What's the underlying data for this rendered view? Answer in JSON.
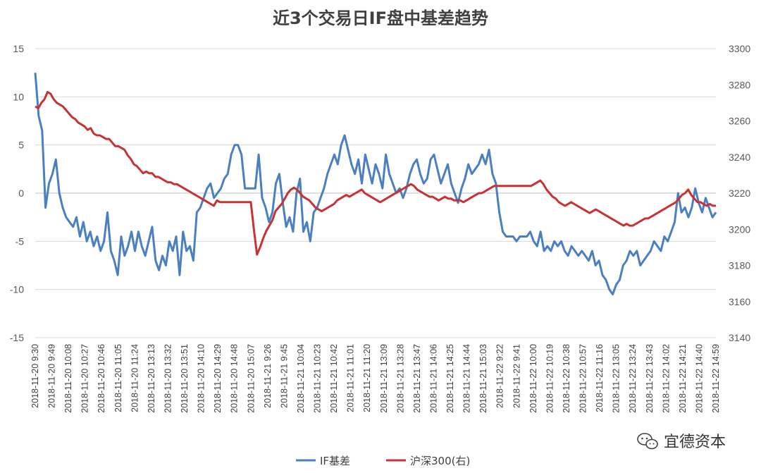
{
  "chart_data": {
    "type": "line",
    "title": "近3个交易日IF盘中基差趋势",
    "x_tick_labels": [
      "2018-11-20 9:30",
      "2018-11-20 9:49",
      "2018-11-20 10:08",
      "2018-11-20 10:27",
      "2018-11-20 10:46",
      "2018-11-20 11:05",
      "2018-11-20 11:24",
      "2018-11-20 13:13",
      "2018-11-20 13:32",
      "2018-11-20 13:51",
      "2018-11-20 14:10",
      "2018-11-20 14:29",
      "2018-11-20 14:48",
      "2018-11-20 15:07",
      "2018-11-21 9:26",
      "2018-11-21 9:45",
      "2018-11-21 10:04",
      "2018-11-21 10:23",
      "2018-11-21 10:42",
      "2018-11-21 11:01",
      "2018-11-21 11:20",
      "2018-11-21 13:09",
      "2018-11-21 13:28",
      "2018-11-21 13:47",
      "2018-11-21 14:06",
      "2018-11-21 14:25",
      "2018-11-21 14:44",
      "2018-11-21 15:03",
      "2018-11-22 9:22",
      "2018-11-22 9:41",
      "2018-11-22 10:00",
      "2018-11-22 10:19",
      "2018-11-22 10:38",
      "2018-11-22 10:57",
      "2018-11-22 11:16",
      "2018-11-22 13:05",
      "2018-11-22 13:24",
      "2018-11-22 13:43",
      "2018-11-22 14:02",
      "2018-11-22 14:21",
      "2018-11-22 14:40",
      "2018-11-22 14:59"
    ],
    "y_left": {
      "ticks": [
        "15",
        "10",
        "5",
        "0",
        "-5",
        "-10",
        "-15"
      ],
      "range": [
        -15,
        15
      ]
    },
    "y_right": {
      "ticks": [
        "3300",
        "3280",
        "3260",
        "3240",
        "3220",
        "3200",
        "3180",
        "3160",
        "3140"
      ],
      "range": [
        3140,
        3300
      ]
    },
    "series": [
      {
        "name": "IF基差",
        "axis": "left",
        "color": "#4a7fc1",
        "values": [
          12.5,
          8.0,
          6.5,
          -1.5,
          1.0,
          2.0,
          3.5,
          0.0,
          -1.5,
          -2.5,
          -3.0,
          -3.5,
          -2.5,
          -4.5,
          -3.0,
          -5.0,
          -4.0,
          -5.5,
          -4.5,
          -6.0,
          -5.0,
          -2.0,
          -6.0,
          -7.0,
          -8.5,
          -4.5,
          -6.5,
          -5.5,
          -4.0,
          -6.0,
          -4.0,
          -5.5,
          -6.5,
          -5.0,
          -3.5,
          -7.0,
          -8.0,
          -6.5,
          -7.5,
          -5.0,
          -6.0,
          -4.5,
          -8.5,
          -4.0,
          -6.0,
          -5.5,
          -7.0,
          -2.0,
          -1.5,
          -0.5,
          0.5,
          1.0,
          -0.5,
          0.0,
          0.5,
          1.5,
          2.0,
          4.0,
          5.0,
          5.0,
          4.0,
          0.5,
          0.5,
          0.5,
          0.5,
          4.0,
          -0.5,
          -1.5,
          -3.0,
          -2.0,
          1.0,
          2.0,
          -1.0,
          -3.5,
          -2.5,
          -4.0,
          0.0,
          1.5,
          -4.0,
          -3.0,
          -5.0,
          -2.0,
          -1.5,
          -0.5,
          0.5,
          2.0,
          3.0,
          4.0,
          3.0,
          5.0,
          6.0,
          4.5,
          3.0,
          2.0,
          3.5,
          1.0,
          4.0,
          2.5,
          1.0,
          3.0,
          2.0,
          0.5,
          4.0,
          2.0,
          1.0,
          0.0,
          0.5,
          -0.5,
          0.5,
          2.0,
          3.0,
          3.5,
          2.0,
          1.0,
          1.5,
          3.5,
          4.0,
          2.5,
          1.0,
          2.0,
          3.0,
          1.0,
          0.0,
          -1.0,
          0.5,
          1.5,
          3.0,
          2.0,
          2.5,
          3.0,
          4.0,
          3.0,
          4.5,
          2.0,
          1.0,
          -2.0,
          -4.0,
          -4.5,
          -4.5,
          -4.5,
          -5.0,
          -4.5,
          -4.5,
          -4.5,
          -4.0,
          -5.0,
          -5.5,
          -4.0,
          -6.0,
          -5.5,
          -6.0,
          -5.0,
          -5.5,
          -5.0,
          -6.0,
          -6.5,
          -5.5,
          -6.0,
          -6.5,
          -6.0,
          -6.5,
          -7.0,
          -6.0,
          -7.5,
          -7.0,
          -8.5,
          -9.0,
          -10.0,
          -10.5,
          -9.5,
          -9.0,
          -7.5,
          -7.0,
          -6.0,
          -6.5,
          -6.0,
          -7.5,
          -7.0,
          -6.5,
          -6.0,
          -5.0,
          -5.5,
          -6.0,
          -4.5,
          -5.0,
          -4.0,
          -3.0,
          0.0,
          -2.0,
          -1.5,
          -2.5,
          -1.5,
          0.5,
          -1.0,
          -2.0,
          -0.5,
          -1.5,
          -2.5,
          -2.0
        ]
      },
      {
        "name": "沪深300(右)",
        "axis": "right",
        "color": "#c83232",
        "values": [
          3268,
          3267,
          3270,
          3272,
          3276,
          3275,
          3272,
          3270,
          3269,
          3268,
          3266,
          3264,
          3262,
          3261,
          3259,
          3258,
          3257,
          3255,
          3256,
          3253,
          3252,
          3252,
          3251,
          3250,
          3250,
          3248,
          3246,
          3246,
          3245,
          3244,
          3241,
          3239,
          3236,
          3235,
          3233,
          3231,
          3232,
          3231,
          3231,
          3229,
          3229,
          3228,
          3227,
          3226,
          3226,
          3225,
          3225,
          3224,
          3223,
          3222,
          3221,
          3220,
          3219,
          3218,
          3217,
          3216,
          3215,
          3214,
          3213,
          3216,
          3215,
          3215,
          3215,
          3215,
          3215,
          3215,
          3215,
          3215,
          3215,
          3215,
          3215,
          3200,
          3186,
          3190,
          3195,
          3199,
          3202,
          3205,
          3210,
          3212,
          3214,
          3217,
          3220,
          3222,
          3223,
          3222,
          3220,
          3218,
          3217,
          3216,
          3214,
          3212,
          3211,
          3210,
          3211,
          3212,
          3213,
          3214,
          3216,
          3217,
          3218,
          3219,
          3218,
          3219,
          3220,
          3221,
          3222,
          3220,
          3219,
          3218,
          3217,
          3216,
          3215,
          3216,
          3217,
          3218,
          3219,
          3220,
          3221,
          3222,
          3223,
          3224,
          3225,
          3224,
          3222,
          3221,
          3220,
          3219,
          3218,
          3218,
          3217,
          3216,
          3217,
          3218,
          3217,
          3217,
          3216,
          3216,
          3216,
          3215,
          3216,
          3217,
          3218,
          3219,
          3220,
          3220,
          3221,
          3222,
          3223,
          3224,
          3224,
          3224,
          3224,
          3224,
          3224,
          3224,
          3224,
          3224,
          3224,
          3224,
          3224,
          3224,
          3225,
          3226,
          3227,
          3225,
          3222,
          3220,
          3218,
          3217,
          3215,
          3214,
          3213,
          3214,
          3215,
          3214,
          3213,
          3212,
          3211,
          3210,
          3209,
          3210,
          3211,
          3210,
          3209,
          3208,
          3207,
          3206,
          3205,
          3204,
          3203,
          3202,
          3203,
          3202,
          3202,
          3203,
          3204,
          3205,
          3206,
          3206,
          3207,
          3208,
          3209,
          3210,
          3211,
          3212,
          3213,
          3214,
          3215,
          3217,
          3219,
          3220,
          3222,
          3219,
          3217,
          3215,
          3215,
          3214,
          3213,
          3214,
          3213,
          3213
        ]
      }
    ],
    "legend_position": "bottom",
    "grid": true
  },
  "watermark": {
    "text": "宜德资本",
    "icon": "wechat-icon"
  }
}
